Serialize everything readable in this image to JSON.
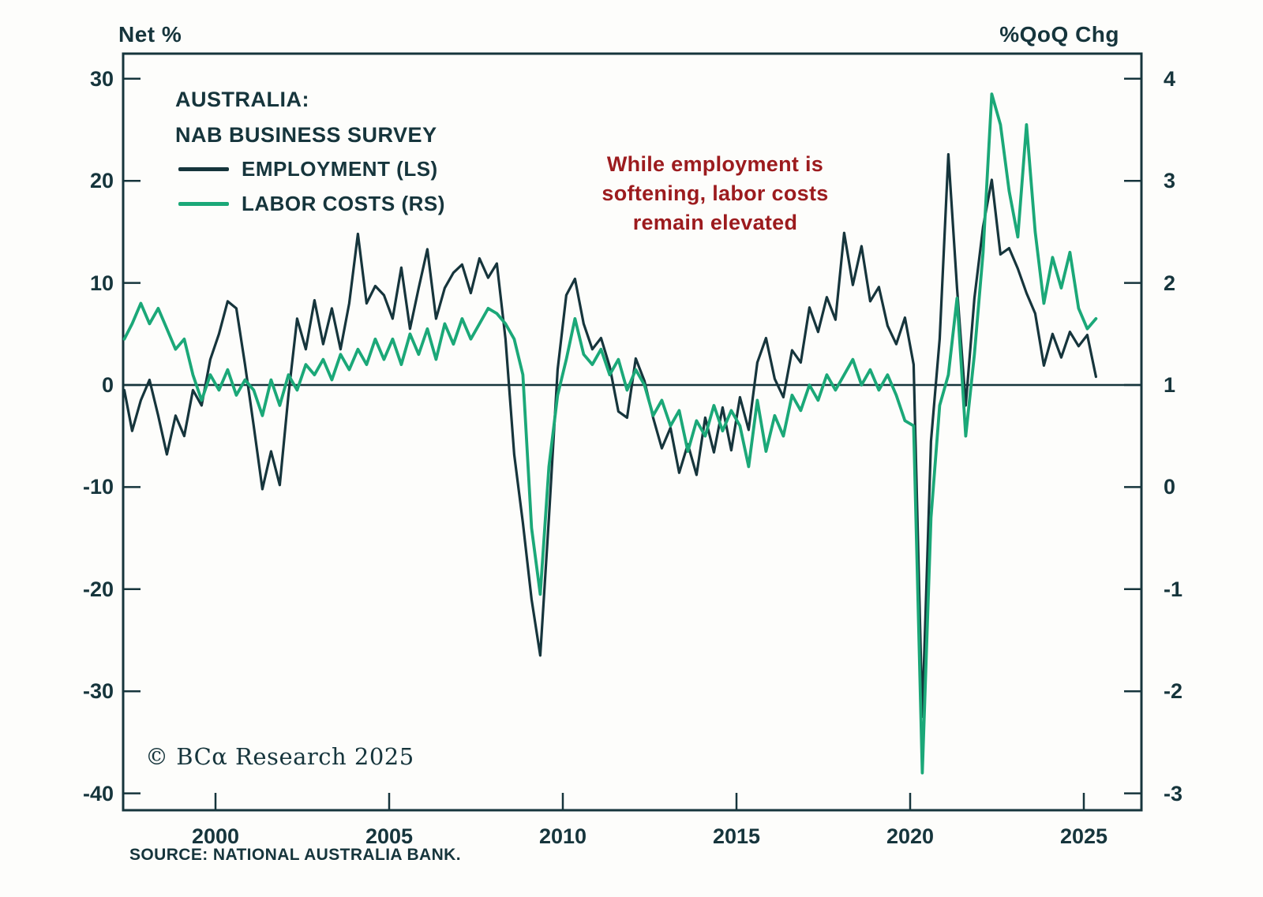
{
  "header": {
    "left_axis_title": "Net %",
    "right_axis_title": "%QoQ Chg"
  },
  "title": {
    "line1": "AUSTRALIA:",
    "line2": "NAB BUSINESS SURVEY"
  },
  "legend": [
    {
      "label": "EMPLOYMENT (LS)",
      "color": "#16353c"
    },
    {
      "label": "LABOR COSTS (RS)",
      "color": "#1ba878"
    }
  ],
  "annotation": {
    "color": "#9c1b1e",
    "lines": [
      "While employment is",
      "softening, labor costs",
      "remain elevated"
    ]
  },
  "footer": {
    "copyright": "© BCα Research 2025",
    "source": "SOURCE: NATIONAL AUSTRALIA BANK."
  },
  "chart_data": {
    "type": "line",
    "title": "AUSTRALIA: NAB BUSINESS SURVEY",
    "grid": "zero-line only",
    "legend_position": "top-left inside plot",
    "x_ticks": [
      2000,
      2005,
      2010,
      2015,
      2020,
      2025
    ],
    "x_range_years": [
      1997.3,
      2026.6
    ],
    "left_axis": {
      "label": "Net %",
      "ticks": [
        30,
        20,
        10,
        0,
        -10,
        -20,
        -30,
        -40
      ],
      "units_per_right_unit": 10
    },
    "right_axis": {
      "label": "%QoQ Chg",
      "ticks": [
        4,
        3,
        2,
        1,
        0,
        -1,
        -2,
        -3
      ]
    },
    "axis_alignment": "left 0 aligns with right 1; 10 left units span equals 1 right unit",
    "series": [
      {
        "name": "EMPLOYMENT (LS)",
        "axis": "left",
        "color": "#16353c",
        "start_year": 1997.35,
        "step_years": 0.25,
        "values": [
          -0.5,
          -4.5,
          -1.5,
          0.5,
          -3,
          -6.8,
          -3,
          -5,
          -0.5,
          -2,
          2.5,
          5,
          8.2,
          7.5,
          2,
          -4,
          -10.2,
          -6.5,
          -9.8,
          -1,
          6.5,
          3.5,
          8.3,
          4,
          7.5,
          3.5,
          8,
          14.8,
          8,
          9.7,
          8.8,
          6.5,
          11.5,
          5.5,
          9.5,
          13.3,
          6.5,
          9.5,
          11,
          11.8,
          9,
          12.4,
          10.5,
          11.9,
          4.5,
          -6.8,
          -13.5,
          -21,
          -26.5,
          -13,
          1.5,
          8.8,
          10.4,
          6,
          3.5,
          4.6,
          1.8,
          -2.6,
          -3.2,
          2.6,
          0.4,
          -3.2,
          -6.2,
          -4.2,
          -8.6,
          -5.8,
          -8.8,
          -3.2,
          -6.6,
          -2.2,
          -6.4,
          -1.2,
          -4.4,
          2.2,
          4.6,
          0.6,
          -1.2,
          3.4,
          2.2,
          7.6,
          5.2,
          8.6,
          6.4,
          14.9,
          9.8,
          13.6,
          8.2,
          9.6,
          5.8,
          4,
          6.6,
          2,
          -32.5,
          -5.5,
          4.5,
          22.6,
          9.5,
          -2,
          8.5,
          15.5,
          20.1,
          12.8,
          13.4,
          11.4,
          9,
          7,
          1.9,
          5,
          2.7,
          5.2,
          3.8,
          4.9,
          0.8
        ]
      },
      {
        "name": "LABOR COSTS (RS)",
        "axis": "right",
        "color": "#1ba878",
        "start_year": 1997.35,
        "step_years": 0.25,
        "values": [
          1.45,
          1.6,
          1.8,
          1.6,
          1.75,
          1.55,
          1.35,
          1.45,
          1.1,
          0.85,
          1.1,
          0.95,
          1.15,
          0.9,
          1.05,
          0.95,
          0.7,
          1.05,
          0.8,
          1.1,
          0.95,
          1.2,
          1.1,
          1.25,
          1.05,
          1.3,
          1.15,
          1.35,
          1.2,
          1.45,
          1.25,
          1.45,
          1.2,
          1.5,
          1.3,
          1.55,
          1.25,
          1.6,
          1.4,
          1.65,
          1.45,
          1.6,
          1.75,
          1.7,
          1.6,
          1.45,
          1.1,
          -0.4,
          -1.05,
          0.2,
          0.9,
          1.25,
          1.65,
          1.3,
          1.2,
          1.35,
          1.1,
          1.25,
          0.95,
          1.15,
          1.0,
          0.7,
          0.85,
          0.6,
          0.75,
          0.35,
          0.65,
          0.5,
          0.8,
          0.55,
          0.75,
          0.6,
          0.2,
          0.85,
          0.35,
          0.7,
          0.5,
          0.9,
          0.75,
          1.0,
          0.85,
          1.1,
          0.95,
          1.1,
          1.25,
          1.0,
          1.15,
          0.95,
          1.1,
          0.9,
          0.65,
          0.6,
          -2.8,
          -0.3,
          0.8,
          1.1,
          1.85,
          0.5,
          1.3,
          2.3,
          3.85,
          3.55,
          2.9,
          2.45,
          3.55,
          2.5,
          1.8,
          2.25,
          1.95,
          2.3,
          1.75,
          1.55,
          1.65
        ]
      }
    ]
  }
}
